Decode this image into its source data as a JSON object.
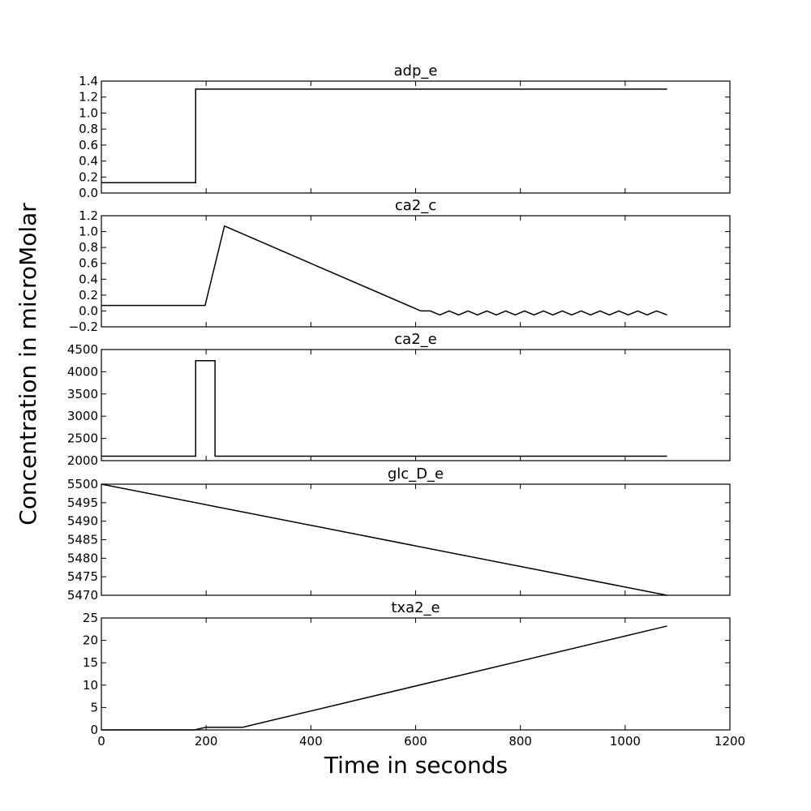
{
  "figure": {
    "xlabel": "Time in seconds",
    "ylabel": "Concentration in microMolar"
  },
  "chart_data": [
    {
      "type": "line",
      "title": "adp_e",
      "xlim": [
        0,
        1200
      ],
      "ylim": [
        0,
        1.4
      ],
      "x_ticks": [
        0,
        200,
        400,
        600,
        800,
        1000,
        1200
      ],
      "y_ticks": [
        0.0,
        0.2,
        0.4,
        0.6,
        0.8,
        1.0,
        1.2,
        1.4
      ],
      "y_tick_labels": [
        "0.0",
        "0.2",
        "0.4",
        "0.6",
        "0.8",
        "1.0",
        "1.2",
        "1.4"
      ],
      "x_tick_labels_visible": false,
      "series": [
        {
          "x": [
            0,
            180,
            180,
            1080
          ],
          "y": [
            0.13,
            0.13,
            1.3,
            1.3
          ]
        }
      ]
    },
    {
      "type": "line",
      "title": "ca2_c",
      "xlim": [
        0,
        1200
      ],
      "ylim": [
        -0.2,
        1.2
      ],
      "x_ticks": [
        0,
        200,
        400,
        600,
        800,
        1000,
        1200
      ],
      "y_ticks": [
        -0.2,
        0.0,
        0.2,
        0.4,
        0.6,
        0.8,
        1.0,
        1.2
      ],
      "y_tick_labels": [
        "−0.2",
        "0.0",
        "0.2",
        "0.4",
        "0.6",
        "0.8",
        "1.0",
        "1.2"
      ],
      "x_tick_labels_visible": false,
      "series": [
        {
          "x": [
            0,
            198,
            235,
            610,
            628,
            646,
            664,
            682,
            700,
            718,
            736,
            754,
            772,
            790,
            808,
            826,
            844,
            862,
            880,
            898,
            916,
            934,
            952,
            970,
            988,
            1006,
            1024,
            1042,
            1060,
            1080
          ],
          "y": [
            0.07,
            0.07,
            1.07,
            0.0,
            0.0,
            -0.05,
            0.0,
            -0.05,
            0.0,
            -0.05,
            0.0,
            -0.05,
            0.0,
            -0.05,
            0.0,
            -0.05,
            0.0,
            -0.05,
            0.0,
            -0.05,
            0.0,
            -0.05,
            0.0,
            -0.05,
            0.0,
            -0.05,
            0.0,
            -0.05,
            0.0,
            -0.05
          ]
        }
      ]
    },
    {
      "type": "line",
      "title": "ca2_e",
      "xlim": [
        0,
        1200
      ],
      "ylim": [
        2000,
        4500
      ],
      "x_ticks": [
        0,
        200,
        400,
        600,
        800,
        1000,
        1200
      ],
      "y_ticks": [
        2000,
        2500,
        3000,
        3500,
        4000,
        4500
      ],
      "y_tick_labels": [
        "2000",
        "2500",
        "3000",
        "3500",
        "4000",
        "4500"
      ],
      "x_tick_labels_visible": false,
      "series": [
        {
          "x": [
            0,
            180,
            180,
            217,
            217,
            1080
          ],
          "y": [
            2100,
            2100,
            4250,
            4250,
            2100,
            2100
          ]
        }
      ]
    },
    {
      "type": "line",
      "title": "glc_D_e",
      "xlim": [
        0,
        1200
      ],
      "ylim": [
        5470,
        5500
      ],
      "x_ticks": [
        0,
        200,
        400,
        600,
        800,
        1000,
        1200
      ],
      "y_ticks": [
        5470,
        5475,
        5480,
        5485,
        5490,
        5495,
        5500
      ],
      "y_tick_labels": [
        "5470",
        "5475",
        "5480",
        "5485",
        "5490",
        "5495",
        "5500"
      ],
      "x_tick_labels_visible": false,
      "series": [
        {
          "x": [
            0,
            1080
          ],
          "y": [
            5500,
            5470
          ]
        }
      ]
    },
    {
      "type": "line",
      "title": "txa2_e",
      "xlim": [
        0,
        1200
      ],
      "ylim": [
        0,
        25
      ],
      "x_ticks": [
        0,
        200,
        400,
        600,
        800,
        1000,
        1200
      ],
      "x_tick_labels": [
        "0",
        "200",
        "400",
        "600",
        "800",
        "1000",
        "1200"
      ],
      "y_ticks": [
        0,
        5,
        10,
        15,
        20,
        25
      ],
      "y_tick_labels": [
        "0",
        "5",
        "10",
        "15",
        "20",
        "25"
      ],
      "x_tick_labels_visible": true,
      "series": [
        {
          "x": [
            0,
            178,
            200,
            270,
            1080
          ],
          "y": [
            0,
            0,
            0.6,
            0.6,
            23.2
          ]
        }
      ]
    }
  ]
}
